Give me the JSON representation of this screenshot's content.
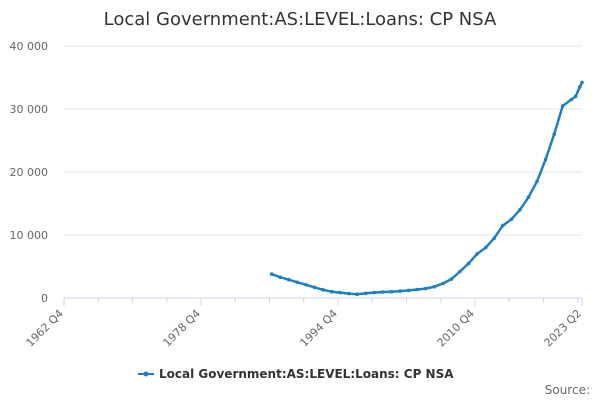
{
  "chart_data": {
    "type": "line",
    "title": "Local Government:AS:LEVEL:Loans: CP NSA",
    "xlabel": "",
    "ylabel": "",
    "x_ticks": [
      "1962 Q4",
      "1978 Q4",
      "1994 Q4",
      "2010 Q4",
      "2023 Q2"
    ],
    "xlim": [
      1962.75,
      2023.25
    ],
    "y_ticks": [
      0,
      10000,
      20000,
      30000,
      40000
    ],
    "y_tick_labels": [
      "0",
      "10 000",
      "20 000",
      "30 000",
      "40 000"
    ],
    "ylim": [
      0,
      40000
    ],
    "grid": true,
    "legend": "bottom-center",
    "series": [
      {
        "name": "Local Government:AS:LEVEL:Loans: CP NSA",
        "color": "#1f7fbf",
        "x": [
          1987.0,
          1988.0,
          1989.0,
          1990.0,
          1991.0,
          1992.0,
          1993.0,
          1994.0,
          1995.0,
          1996.0,
          1997.0,
          1998.0,
          1999.0,
          2000.0,
          2001.0,
          2002.0,
          2003.0,
          2004.0,
          2005.0,
          2006.0,
          2007.0,
          2008.0,
          2009.0,
          2010.0,
          2011.0,
          2012.0,
          2013.0,
          2014.0,
          2015.0,
          2016.0,
          2017.0,
          2018.0,
          2019.0,
          2020.0,
          2021.0,
          2022.0,
          2022.5,
          2023.0,
          2023.25
        ],
        "y": [
          3800,
          3300,
          2900,
          2500,
          2100,
          1700,
          1300,
          1000,
          850,
          700,
          600,
          750,
          850,
          950,
          1000,
          1100,
          1200,
          1350,
          1500,
          1800,
          2300,
          3000,
          4200,
          5500,
          7000,
          8000,
          9500,
          11500,
          12500,
          14000,
          16000,
          18500,
          22000,
          26000,
          30500,
          31500,
          32000,
          33500,
          34200
        ]
      }
    ]
  },
  "legend": {
    "label": "Local Government:AS:LEVEL:Loans: CP NSA"
  },
  "credits": {
    "text": "Source:"
  }
}
